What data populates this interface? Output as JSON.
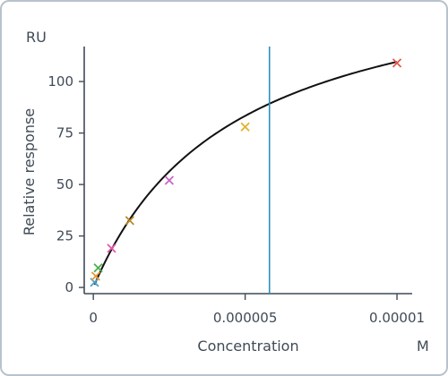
{
  "chart_data": {
    "type": "scatter",
    "title": "",
    "y_unit": "RU",
    "x_unit": "M",
    "xlabel": "Concentration",
    "ylabel": "Relative response",
    "xlim": [
      -3e-07,
      1.05e-05
    ],
    "ylim": [
      -3,
      117
    ],
    "x_ticks": [
      0,
      5e-06,
      1e-05
    ],
    "x_tick_labels": [
      "0",
      "0.000005",
      "0.00001"
    ],
    "y_ticks": [
      0,
      25,
      50,
      75,
      100
    ],
    "y_tick_labels": [
      "0",
      "25",
      "50",
      "75",
      "100"
    ],
    "grid": false,
    "legend": "none",
    "points": [
      {
        "x": 4e-08,
        "y": 2.5,
        "color": "#4aa3c9"
      },
      {
        "x": 8e-08,
        "y": 5.5,
        "color": "#e59a3b"
      },
      {
        "x": 1.6e-07,
        "y": 9.5,
        "color": "#4caf50"
      },
      {
        "x": 6e-07,
        "y": 19,
        "color": "#e05aa8"
      },
      {
        "x": 1.2e-06,
        "y": 32.5,
        "color": "#b8892a"
      },
      {
        "x": 2.5e-06,
        "y": 52,
        "color": "#c767c7"
      },
      {
        "x": 5e-06,
        "y": 78,
        "color": "#e3b22b"
      },
      {
        "x": 1e-05,
        "y": 109,
        "color": "#e05a4f"
      }
    ],
    "fit_curve": {
      "type": "langmuir",
      "rmax": 160,
      "kd": 4.6e-06,
      "color": "#111111"
    },
    "vertical_line": {
      "x": 5.8e-06,
      "color": "#2c8fc0"
    }
  }
}
